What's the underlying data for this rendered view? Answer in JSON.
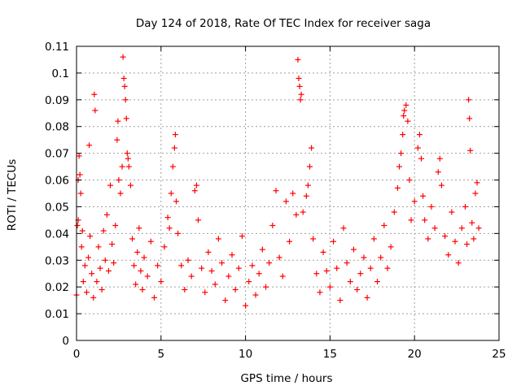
{
  "chart_data": {
    "type": "scatter",
    "title": "Day 124 of 2018, Rate Of TEC Index for receiver saga",
    "xlabel": "GPS time / hours",
    "ylabel": "ROTI / TECUs",
    "xlim": [
      0,
      25
    ],
    "ylim": [
      0,
      0.11
    ],
    "x_ticks": [
      "0",
      "5",
      "10",
      "15",
      "20",
      "25"
    ],
    "y_ticks": [
      "0",
      "0.01",
      "0.02",
      "0.03",
      "0.04",
      "0.05",
      "0.06",
      "0.07",
      "0.08",
      "0.09",
      "0.1",
      "0.11"
    ],
    "grid": true,
    "marker": "+",
    "series": [
      {
        "color": "#ff0000",
        "points": [
          [
            0.0,
            0.017
          ],
          [
            0.05,
            0.043
          ],
          [
            0.1,
            0.045
          ],
          [
            0.1,
            0.06
          ],
          [
            0.15,
            0.069
          ],
          [
            0.2,
            0.062
          ],
          [
            0.25,
            0.055
          ],
          [
            0.3,
            0.035
          ],
          [
            0.35,
            0.041
          ],
          [
            0.4,
            0.022
          ],
          [
            0.5,
            0.028
          ],
          [
            0.6,
            0.018
          ],
          [
            0.7,
            0.031
          ],
          [
            0.75,
            0.073
          ],
          [
            0.8,
            0.039
          ],
          [
            0.9,
            0.025
          ],
          [
            1.0,
            0.016
          ],
          [
            1.05,
            0.092
          ],
          [
            1.1,
            0.086
          ],
          [
            1.2,
            0.022
          ],
          [
            1.3,
            0.035
          ],
          [
            1.4,
            0.027
          ],
          [
            1.5,
            0.019
          ],
          [
            1.6,
            0.041
          ],
          [
            1.7,
            0.03
          ],
          [
            1.8,
            0.047
          ],
          [
            1.9,
            0.026
          ],
          [
            2.0,
            0.058
          ],
          [
            2.1,
            0.036
          ],
          [
            2.2,
            0.029
          ],
          [
            2.3,
            0.043
          ],
          [
            2.4,
            0.075
          ],
          [
            2.45,
            0.082
          ],
          [
            2.5,
            0.06
          ],
          [
            2.6,
            0.055
          ],
          [
            2.7,
            0.065
          ],
          [
            2.75,
            0.106
          ],
          [
            2.8,
            0.098
          ],
          [
            2.85,
            0.095
          ],
          [
            2.9,
            0.09
          ],
          [
            2.95,
            0.083
          ],
          [
            3.0,
            0.07
          ],
          [
            3.05,
            0.068
          ],
          [
            3.1,
            0.065
          ],
          [
            3.2,
            0.058
          ],
          [
            3.3,
            0.038
          ],
          [
            3.4,
            0.028
          ],
          [
            3.5,
            0.021
          ],
          [
            3.6,
            0.033
          ],
          [
            3.7,
            0.042
          ],
          [
            3.8,
            0.026
          ],
          [
            3.9,
            0.019
          ],
          [
            4.0,
            0.031
          ],
          [
            4.2,
            0.024
          ],
          [
            4.4,
            0.037
          ],
          [
            4.6,
            0.016
          ],
          [
            4.8,
            0.028
          ],
          [
            5.0,
            0.022
          ],
          [
            5.2,
            0.035
          ],
          [
            5.4,
            0.046
          ],
          [
            5.5,
            0.042
          ],
          [
            5.6,
            0.055
          ],
          [
            5.7,
            0.065
          ],
          [
            5.8,
            0.072
          ],
          [
            5.85,
            0.077
          ],
          [
            5.9,
            0.052
          ],
          [
            6.0,
            0.04
          ],
          [
            6.2,
            0.028
          ],
          [
            6.4,
            0.019
          ],
          [
            6.6,
            0.03
          ],
          [
            6.8,
            0.024
          ],
          [
            7.0,
            0.056
          ],
          [
            7.1,
            0.058
          ],
          [
            7.2,
            0.045
          ],
          [
            7.4,
            0.027
          ],
          [
            7.6,
            0.018
          ],
          [
            7.8,
            0.033
          ],
          [
            8.0,
            0.026
          ],
          [
            8.2,
            0.021
          ],
          [
            8.4,
            0.038
          ],
          [
            8.6,
            0.029
          ],
          [
            8.8,
            0.015
          ],
          [
            9.0,
            0.024
          ],
          [
            9.2,
            0.032
          ],
          [
            9.4,
            0.019
          ],
          [
            9.6,
            0.027
          ],
          [
            9.8,
            0.039
          ],
          [
            10.0,
            0.013
          ],
          [
            10.2,
            0.022
          ],
          [
            10.4,
            0.028
          ],
          [
            10.6,
            0.017
          ],
          [
            10.8,
            0.025
          ],
          [
            11.0,
            0.034
          ],
          [
            11.2,
            0.02
          ],
          [
            11.4,
            0.029
          ],
          [
            11.6,
            0.043
          ],
          [
            11.8,
            0.056
          ],
          [
            12.0,
            0.031
          ],
          [
            12.2,
            0.024
          ],
          [
            12.4,
            0.052
          ],
          [
            12.6,
            0.037
          ],
          [
            12.8,
            0.055
          ],
          [
            13.0,
            0.047
          ],
          [
            13.1,
            0.105
          ],
          [
            13.15,
            0.098
          ],
          [
            13.2,
            0.095
          ],
          [
            13.25,
            0.09
          ],
          [
            13.3,
            0.092
          ],
          [
            13.4,
            0.048
          ],
          [
            13.6,
            0.054
          ],
          [
            13.7,
            0.058
          ],
          [
            13.8,
            0.065
          ],
          [
            13.9,
            0.072
          ],
          [
            14.0,
            0.038
          ],
          [
            14.2,
            0.025
          ],
          [
            14.4,
            0.018
          ],
          [
            14.6,
            0.033
          ],
          [
            14.8,
            0.026
          ],
          [
            15.0,
            0.02
          ],
          [
            15.2,
            0.037
          ],
          [
            15.4,
            0.027
          ],
          [
            15.6,
            0.015
          ],
          [
            15.8,
            0.042
          ],
          [
            16.0,
            0.029
          ],
          [
            16.2,
            0.022
          ],
          [
            16.4,
            0.034
          ],
          [
            16.6,
            0.019
          ],
          [
            16.8,
            0.025
          ],
          [
            17.0,
            0.031
          ],
          [
            17.2,
            0.016
          ],
          [
            17.4,
            0.027
          ],
          [
            17.6,
            0.038
          ],
          [
            17.8,
            0.022
          ],
          [
            18.0,
            0.031
          ],
          [
            18.2,
            0.043
          ],
          [
            18.4,
            0.027
          ],
          [
            18.6,
            0.035
          ],
          [
            18.8,
            0.048
          ],
          [
            19.0,
            0.057
          ],
          [
            19.1,
            0.065
          ],
          [
            19.2,
            0.07
          ],
          [
            19.3,
            0.077
          ],
          [
            19.35,
            0.084
          ],
          [
            19.4,
            0.086
          ],
          [
            19.5,
            0.088
          ],
          [
            19.6,
            0.082
          ],
          [
            19.7,
            0.06
          ],
          [
            19.8,
            0.045
          ],
          [
            20.0,
            0.052
          ],
          [
            20.2,
            0.072
          ],
          [
            20.3,
            0.077
          ],
          [
            20.4,
            0.068
          ],
          [
            20.5,
            0.054
          ],
          [
            20.6,
            0.045
          ],
          [
            20.8,
            0.038
          ],
          [
            21.0,
            0.05
          ],
          [
            21.2,
            0.042
          ],
          [
            21.4,
            0.063
          ],
          [
            21.5,
            0.068
          ],
          [
            21.6,
            0.058
          ],
          [
            21.8,
            0.039
          ],
          [
            22.0,
            0.032
          ],
          [
            22.2,
            0.048
          ],
          [
            22.4,
            0.037
          ],
          [
            22.6,
            0.029
          ],
          [
            22.8,
            0.042
          ],
          [
            23.0,
            0.05
          ],
          [
            23.1,
            0.036
          ],
          [
            23.2,
            0.09
          ],
          [
            23.25,
            0.083
          ],
          [
            23.3,
            0.071
          ],
          [
            23.4,
            0.044
          ],
          [
            23.5,
            0.038
          ],
          [
            23.6,
            0.055
          ],
          [
            23.7,
            0.059
          ],
          [
            23.8,
            0.042
          ]
        ]
      }
    ]
  }
}
